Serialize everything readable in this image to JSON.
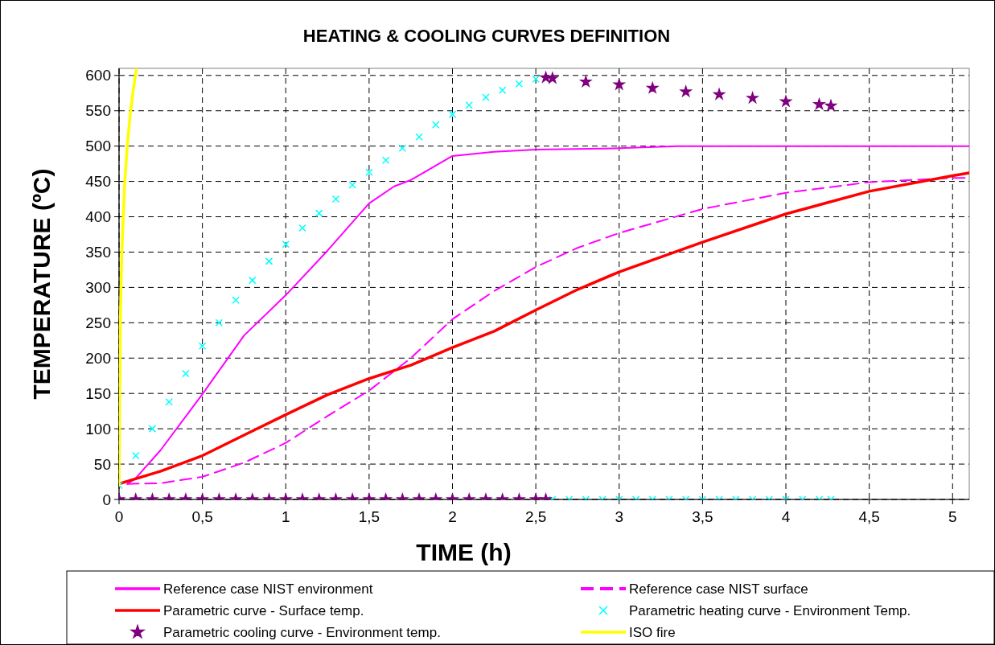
{
  "chart_data": {
    "type": "line",
    "title": "HEATING & COOLING CURVES DEFINITION",
    "xlabel": "TIME (h)",
    "ylabel": "TEMPERATURE (ºC)",
    "xlim": [
      0,
      5.1
    ],
    "ylim": [
      0,
      610
    ],
    "xticks": [
      0,
      {
        "value": 0.5,
        "label": "0,5"
      },
      1,
      {
        "value": 1.5,
        "label": "1,5"
      },
      2,
      {
        "value": 2.5,
        "label": "2,5"
      },
      3,
      {
        "value": 3.5,
        "label": "3,5"
      },
      4,
      {
        "value": 4.5,
        "label": "4,5"
      },
      5
    ],
    "yticks": [
      0,
      50,
      100,
      150,
      200,
      250,
      300,
      350,
      400,
      450,
      500,
      550,
      600
    ],
    "grid": true,
    "legend": "bottom",
    "series": [
      {
        "name": "Reference case NIST environment",
        "color": "#ff00ff",
        "line_style": "solid",
        "marker": "none",
        "x": [
          0.05,
          0.1,
          0.25,
          0.5,
          0.75,
          1,
          1.25,
          1.5,
          1.65,
          1.75,
          2,
          2.25,
          2.5,
          3,
          3.35,
          5.1
        ],
        "values": [
          22,
          30,
          70,
          149,
          232,
          289,
          352,
          419,
          443,
          452,
          486,
          492,
          495,
          497,
          500,
          500
        ]
      },
      {
        "name": "Reference case NIST surface",
        "color": "#ff00ff",
        "line_style": "dashed",
        "marker": "none",
        "x": [
          0.05,
          0.25,
          0.5,
          0.75,
          1,
          1.25,
          1.5,
          1.75,
          2,
          2.25,
          2.5,
          2.75,
          3,
          3.5,
          4,
          4.5,
          5,
          5.1
        ],
        "values": [
          22,
          23,
          32,
          52,
          80,
          118,
          154,
          200,
          255,
          295,
          329,
          356,
          377,
          411,
          434,
          449,
          455,
          455
        ]
      },
      {
        "name": "Parametric curve - Surface temp.",
        "color": "#ff0000",
        "line_style": "solid",
        "marker": "none",
        "x": [
          0,
          0.25,
          0.5,
          0.75,
          1,
          1.25,
          1.5,
          1.75,
          2,
          2.25,
          2.5,
          2.75,
          3,
          3.5,
          4,
          4.5,
          5,
          5.1
        ],
        "values": [
          22,
          40,
          62,
          91,
          120,
          148,
          171,
          190,
          215,
          238,
          268,
          297,
          322,
          364,
          404,
          436,
          458,
          462
        ]
      },
      {
        "name": "Parametric heating curve - Environment Temp.",
        "type": "scatter",
        "color": "#00ffff",
        "marker": "cross",
        "x": [
          0,
          0.1,
          0.2,
          0.3,
          0.4,
          0.5,
          0.6,
          0.7,
          0.8,
          0.9,
          1,
          1.1,
          1.2,
          1.3,
          1.4,
          1.5,
          1.6,
          1.7,
          1.8,
          1.9,
          2,
          2.1,
          2.2,
          2.3,
          2.4,
          2.5,
          2.6,
          2.7,
          2.8,
          2.9,
          3,
          3.1,
          3.2,
          3.3,
          3.4,
          3.5,
          3.6,
          3.7,
          3.8,
          3.9,
          4,
          4.1,
          4.2,
          4.27
        ],
        "values": [
          20,
          62,
          100,
          138,
          178,
          217,
          250,
          282,
          310,
          337,
          361,
          384,
          405,
          425,
          445,
          463,
          480,
          497,
          513,
          530,
          545,
          558,
          569,
          579,
          588,
          595,
          0,
          0,
          0,
          0,
          0,
          0,
          0,
          0,
          0,
          0,
          0,
          0,
          0,
          0,
          0,
          0,
          0,
          0
        ]
      },
      {
        "name": "Parametric cooling curve - Environment temp.",
        "type": "scatter",
        "color": "#800080",
        "marker": "star",
        "x": [
          0,
          0.1,
          0.2,
          0.3,
          0.4,
          0.5,
          0.6,
          0.7,
          0.8,
          0.9,
          1,
          1.1,
          1.2,
          1.3,
          1.4,
          1.5,
          1.6,
          1.7,
          1.8,
          1.9,
          2,
          2.1,
          2.2,
          2.3,
          2.4,
          2.5,
          2.56,
          2.56,
          2.6,
          2.8,
          3,
          3.2,
          3.4,
          3.6,
          3.8,
          4,
          4.2,
          4.27
        ],
        "values": [
          0,
          0,
          0,
          0,
          0,
          0,
          0,
          0,
          0,
          0,
          0,
          0,
          0,
          0,
          0,
          0,
          0,
          0,
          0,
          0,
          0,
          0,
          0,
          0,
          0,
          0,
          0,
          597,
          596,
          591,
          587,
          582,
          577,
          573,
          568,
          563,
          559,
          557
        ]
      },
      {
        "name": "ISO fire",
        "color": "#ffff00",
        "line_style": "solid",
        "marker": "none",
        "x": [
          0,
          0.0083,
          0.0167,
          0.0333,
          0.05,
          0.0667,
          0.0833,
          0.1,
          0.104
        ],
        "values": [
          20,
          261,
          349,
          445,
          502,
          544,
          576,
          603,
          608
        ]
      }
    ]
  }
}
